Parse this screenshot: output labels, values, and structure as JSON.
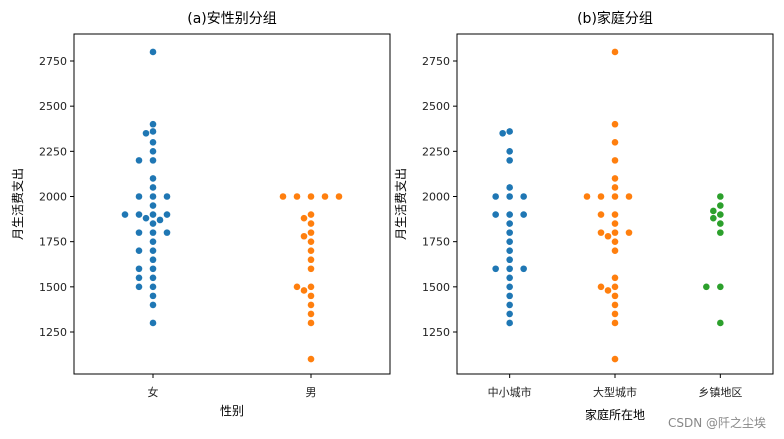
{
  "chart_data": [
    {
      "type": "scatter",
      "subtype": "swarm",
      "title": "(a)安性别分组",
      "xlabel": "性别",
      "ylabel": "月生活费支出",
      "categories": [
        "女",
        "男"
      ],
      "ylim": [
        1025,
        2875
      ],
      "yticks": [
        1250,
        1500,
        1750,
        2000,
        2250,
        2500,
        2750
      ],
      "colors": [
        "#1f77b4",
        "#ff7f0e"
      ],
      "values": [
        [
          2800,
          2400,
          2360,
          2350,
          2300,
          2250,
          2200,
          2200,
          2100,
          2050,
          2000,
          2000,
          2000,
          1950,
          1900,
          1900,
          1900,
          1900,
          1880,
          1870,
          1850,
          1800,
          1800,
          1800,
          1750,
          1700,
          1700,
          1650,
          1600,
          1600,
          1550,
          1550,
          1500,
          1500,
          1450,
          1400,
          1300
        ],
        [
          2000,
          2000,
          2000,
          2000,
          2000,
          1900,
          1880,
          1850,
          1800,
          1780,
          1750,
          1700,
          1650,
          1600,
          1500,
          1500,
          1480,
          1450,
          1400,
          1350,
          1300,
          1100
        ]
      ]
    },
    {
      "type": "scatter",
      "subtype": "swarm",
      "title": "(b)家庭分组",
      "xlabel": "家庭所在地",
      "ylabel": "月生活费支出",
      "categories": [
        "中小城市",
        "大型城市",
        "乡镇地区"
      ],
      "ylim": [
        1025,
        2875
      ],
      "yticks": [
        1250,
        1500,
        1750,
        2000,
        2250,
        2500,
        2750
      ],
      "colors": [
        "#1f77b4",
        "#ff7f0e",
        "#2ca02c"
      ],
      "values": [
        [
          2360,
          2350,
          2250,
          2200,
          2050,
          2000,
          2000,
          2000,
          1900,
          1900,
          1900,
          1850,
          1800,
          1750,
          1700,
          1650,
          1600,
          1600,
          1600,
          1550,
          1500,
          1450,
          1400,
          1350,
          1300
        ],
        [
          2800,
          2400,
          2300,
          2200,
          2100,
          2050,
          2000,
          2000,
          2000,
          2000,
          1900,
          1900,
          1850,
          1800,
          1800,
          1800,
          1780,
          1750,
          1700,
          1550,
          1500,
          1500,
          1480,
          1450,
          1400,
          1350,
          1300,
          1100
        ],
        [
          2000,
          1950,
          1920,
          1900,
          1880,
          1850,
          1800,
          1500,
          1500,
          1300
        ]
      ]
    }
  ],
  "watermark": "CSDN @阡之尘埃"
}
